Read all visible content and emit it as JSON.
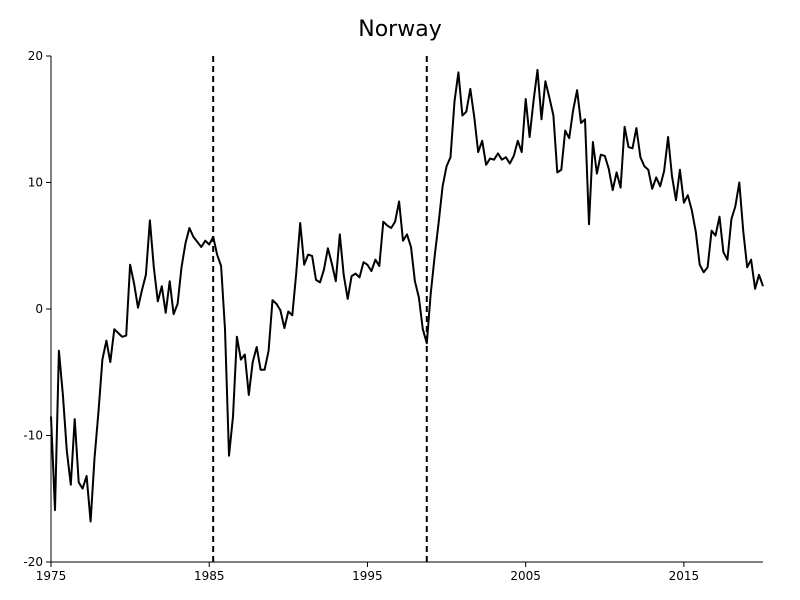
{
  "chart_data": {
    "type": "line",
    "title": "Norway",
    "xlabel": "",
    "ylabel": "",
    "xlim": [
      1975,
      2020
    ],
    "ylim": [
      -20,
      20
    ],
    "x_ticks": [
      1975,
      1985,
      1995,
      2005,
      2015
    ],
    "x_tick_labels": [
      "1975",
      "1985",
      "1995",
      "2005",
      "2015"
    ],
    "y_ticks": [
      -20,
      -10,
      0,
      10,
      20
    ],
    "y_tick_labels": [
      "-20",
      "-10",
      "0",
      "10",
      "20"
    ],
    "grid": false,
    "legend": "none",
    "vertical_dashed_lines": [
      1985.25,
      1998.75
    ],
    "series": [
      {
        "color": "#000000",
        "x": [
          1975.0,
          1975.25,
          1975.5,
          1975.75,
          1976.0,
          1976.25,
          1976.5,
          1976.75,
          1977.0,
          1977.25,
          1977.5,
          1977.75,
          1978.0,
          1978.25,
          1978.5,
          1978.75,
          1979.0,
          1979.25,
          1979.5,
          1979.75,
          1980.0,
          1980.25,
          1980.5,
          1980.75,
          1981.0,
          1981.25,
          1981.5,
          1981.75,
          1982.0,
          1982.25,
          1982.5,
          1982.75,
          1983.0,
          1983.25,
          1983.5,
          1983.75,
          1984.0,
          1984.25,
          1984.5,
          1984.75,
          1985.0,
          1985.25,
          1985.5,
          1985.75,
          1986.0,
          1986.25,
          1986.5,
          1986.75,
          1987.0,
          1987.25,
          1987.5,
          1987.75,
          1988.0,
          1988.25,
          1988.5,
          1988.75,
          1989.0,
          1989.25,
          1989.5,
          1989.75,
          1990.0,
          1990.25,
          1990.5,
          1990.75,
          1991.0,
          1991.25,
          1991.5,
          1991.75,
          1992.0,
          1992.25,
          1992.5,
          1992.75,
          1993.0,
          1993.25,
          1993.5,
          1993.75,
          1994.0,
          1994.25,
          1994.5,
          1994.75,
          1995.0,
          1995.25,
          1995.5,
          1995.75,
          1996.0,
          1996.25,
          1996.5,
          1996.75,
          1997.0,
          1997.25,
          1997.5,
          1997.75,
          1998.0,
          1998.25,
          1998.5,
          1998.75,
          1999.0,
          1999.25,
          1999.5,
          1999.75,
          2000.0,
          2000.25,
          2000.5,
          2000.75,
          2001.0,
          2001.25,
          2001.5,
          2001.75,
          2002.0,
          2002.25,
          2002.5,
          2002.75,
          2003.0,
          2003.25,
          2003.5,
          2003.75,
          2004.0,
          2004.25,
          2004.5,
          2004.75,
          2005.0,
          2005.25,
          2005.5,
          2005.75,
          2006.0,
          2006.25,
          2006.5,
          2006.75,
          2007.0,
          2007.25,
          2007.5,
          2007.75,
          2008.0,
          2008.25,
          2008.5,
          2008.75,
          2009.0,
          2009.25,
          2009.5,
          2009.75,
          2010.0,
          2010.25,
          2010.5,
          2010.75,
          2011.0,
          2011.25,
          2011.5,
          2011.75,
          2012.0,
          2012.25,
          2012.5,
          2012.75,
          2013.0,
          2013.25,
          2013.5,
          2013.75,
          2014.0,
          2014.25,
          2014.5,
          2014.75,
          2015.0,
          2015.25,
          2015.5,
          2015.75,
          2016.0,
          2016.25,
          2016.5,
          2016.75,
          2017.0,
          2017.25,
          2017.5,
          2017.75,
          2018.0,
          2018.25,
          2018.5,
          2018.75,
          2019.0,
          2019.25,
          2019.5,
          2019.75,
          2020.0
        ],
        "y": [
          -8.5,
          -15.9,
          -3.3,
          -6.8,
          -11.2,
          -13.9,
          -8.7,
          -13.7,
          -14.2,
          -13.2,
          -16.8,
          -11.8,
          -8.1,
          -4.0,
          -2.5,
          -4.2,
          -1.6,
          -1.9,
          -2.2,
          -2.1,
          3.5,
          2.0,
          0.1,
          1.5,
          2.7,
          7.0,
          3.3,
          0.6,
          1.8,
          -0.3,
          2.2,
          -0.4,
          0.4,
          3.3,
          5.2,
          6.4,
          5.7,
          5.3,
          4.9,
          5.4,
          5.1,
          5.7,
          4.3,
          3.4,
          -1.6,
          -11.6,
          -8.5,
          -2.2,
          -4.0,
          -3.6,
          -6.8,
          -4.2,
          -3.0,
          -4.8,
          -4.8,
          -3.3,
          0.7,
          0.4,
          -0.1,
          -1.5,
          -0.2,
          -0.5,
          2.8,
          6.8,
          3.5,
          4.3,
          4.2,
          2.3,
          2.1,
          3.1,
          4.8,
          3.6,
          2.2,
          5.9,
          2.7,
          0.8,
          2.6,
          2.8,
          2.5,
          3.7,
          3.5,
          3.0,
          3.9,
          3.4,
          6.9,
          6.6,
          6.4,
          6.9,
          8.5,
          5.4,
          5.9,
          4.9,
          2.2,
          0.9,
          -1.6,
          -2.7,
          1.2,
          4.2,
          6.8,
          9.7,
          11.3,
          12.0,
          16.4,
          18.7,
          15.3,
          15.6,
          17.4,
          15.2,
          12.4,
          13.3,
          11.4,
          11.9,
          11.8,
          12.3,
          11.8,
          12.0,
          11.5,
          12.1,
          13.3,
          12.4,
          16.6,
          13.6,
          16.5,
          18.9,
          15.0,
          18.0,
          16.7,
          15.3,
          10.8,
          11.0,
          14.1,
          13.5,
          15.7,
          17.3,
          14.7,
          15.0,
          6.7,
          13.2,
          10.7,
          12.2,
          12.1,
          11.1,
          9.4,
          10.8,
          9.6,
          14.4,
          12.8,
          12.7,
          14.3,
          12.0,
          11.3,
          11.0,
          9.5,
          10.4,
          9.7,
          10.9,
          13.6,
          10.5,
          8.6,
          11.0,
          8.4,
          9.0,
          7.8,
          6.1,
          3.5,
          2.9,
          3.3,
          6.2,
          5.8,
          7.3,
          4.5,
          3.9,
          7.1,
          8.1,
          10.0,
          6.2,
          3.3,
          3.9,
          1.6,
          2.7,
          1.8
        ]
      }
    ]
  }
}
